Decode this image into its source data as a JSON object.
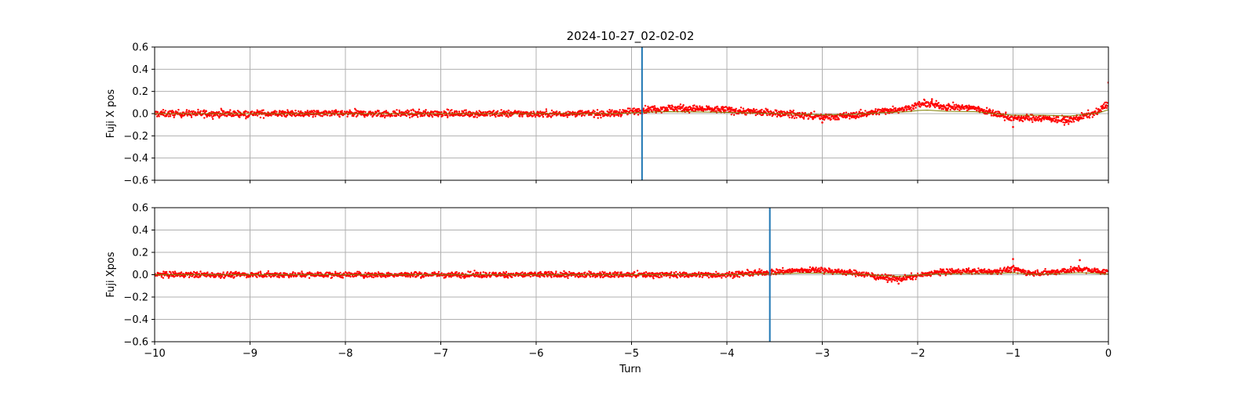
{
  "figure": {
    "title": "2024-10-27_02-02-02",
    "xlabel": "Turn"
  },
  "colors": {
    "points": "#ff0000",
    "trend": "#808000",
    "marker": "#1f77b4",
    "grid": "#b0b0b0"
  },
  "chart_data": [
    {
      "type": "scatter",
      "ylabel": "Fuji X pos",
      "xlim": [
        -10,
        0
      ],
      "ylim": [
        -0.6,
        0.6
      ],
      "xticks": [
        -10,
        -9,
        -8,
        -7,
        -6,
        -5,
        -4,
        -3,
        -2,
        -1,
        0
      ],
      "xtick_labels_shown": false,
      "yticks": [
        -0.6,
        -0.4,
        -0.2,
        0.0,
        0.2,
        0.4,
        0.6
      ],
      "ytick_labels": [
        "−0.6",
        "−0.4",
        "−0.2",
        "0.0",
        "0.2",
        "0.4",
        "0.6"
      ],
      "grid": true,
      "vertical_marker_x": -4.89,
      "spread": 0.03,
      "trend_profile": [
        [
          -10,
          0.0
        ],
        [
          -9,
          0.0
        ],
        [
          -8,
          0.0
        ],
        [
          -7,
          0.0
        ],
        [
          -6,
          0.0
        ],
        [
          -5.2,
          0.0
        ],
        [
          -5.0,
          0.02
        ],
        [
          -4.8,
          0.04
        ],
        [
          -4.6,
          0.05
        ],
        [
          -4.2,
          0.04
        ],
        [
          -3.8,
          0.02
        ],
        [
          -3.4,
          0.0
        ],
        [
          -3.0,
          -0.03
        ],
        [
          -2.7,
          -0.02
        ],
        [
          -2.4,
          0.02
        ],
        [
          -2.1,
          0.05
        ],
        [
          -2.0,
          0.08
        ],
        [
          -1.9,
          0.09
        ],
        [
          -1.7,
          0.06
        ],
        [
          -1.4,
          0.05
        ],
        [
          -1.2,
          0.0
        ],
        [
          -1.0,
          -0.04
        ],
        [
          -0.7,
          -0.04
        ],
        [
          -0.4,
          -0.06
        ],
        [
          -0.1,
          0.02
        ],
        [
          0,
          0.1
        ]
      ],
      "outliers": [
        [
          0,
          0.28
        ],
        [
          -1.85,
          0.13
        ],
        [
          -1.0,
          -0.12
        ],
        [
          -3.0,
          -0.08
        ]
      ]
    },
    {
      "type": "scatter",
      "ylabel": "Fuji Xpos",
      "xlim": [
        -10,
        0
      ],
      "ylim": [
        -0.6,
        0.6
      ],
      "xticks": [
        -10,
        -9,
        -8,
        -7,
        -6,
        -5,
        -4,
        -3,
        -2,
        -1,
        0
      ],
      "xtick_labels": [
        "−10",
        "−9",
        "−8",
        "−7",
        "−6",
        "−5",
        "−4",
        "−3",
        "−2",
        "−1",
        "0"
      ],
      "xtick_labels_shown": true,
      "yticks": [
        -0.6,
        -0.4,
        -0.2,
        0.0,
        0.2,
        0.4,
        0.6
      ],
      "ytick_labels": [
        "−0.6",
        "−0.4",
        "−0.2",
        "0.0",
        "0.2",
        "0.4",
        "0.6"
      ],
      "grid": true,
      "vertical_marker_x": -3.55,
      "spread": 0.025,
      "trend_profile": [
        [
          -10,
          0.0
        ],
        [
          -8,
          0.0
        ],
        [
          -6,
          0.0
        ],
        [
          -4,
          0.0
        ],
        [
          -3.6,
          0.02
        ],
        [
          -3.2,
          0.04
        ],
        [
          -3.0,
          0.04
        ],
        [
          -2.6,
          0.01
        ],
        [
          -2.4,
          -0.02
        ],
        [
          -2.2,
          -0.04
        ],
        [
          -2.0,
          -0.01
        ],
        [
          -1.8,
          0.02
        ],
        [
          -1.5,
          0.03
        ],
        [
          -1.2,
          0.03
        ],
        [
          -1.0,
          0.05
        ],
        [
          -0.8,
          0.01
        ],
        [
          -0.5,
          0.03
        ],
        [
          -0.3,
          0.05
        ],
        [
          0,
          0.02
        ]
      ],
      "outliers": [
        [
          -1.0,
          0.14
        ],
        [
          -0.3,
          0.13
        ],
        [
          -2.2,
          -0.08
        ]
      ]
    }
  ]
}
